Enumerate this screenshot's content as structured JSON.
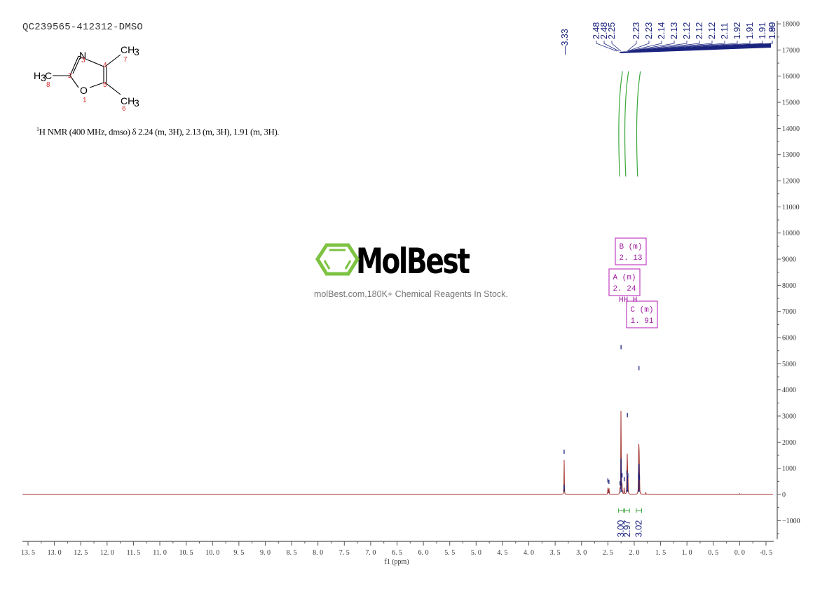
{
  "header": {
    "title": "QC239565-412312-DMSO",
    "nmr_description_sup": "1",
    "nmr_description": "H NMR (400 MHz, dmso) δ 2.24 (m, 3H), 2.13 (m, 3H), 1.91 (m, 3H)."
  },
  "structure": {
    "atoms": [
      {
        "label": "N",
        "num": "3"
      },
      {
        "label": "O",
        "num": "1"
      },
      {
        "label": "C",
        "num": "2"
      },
      {
        "label": "C",
        "num": "4"
      },
      {
        "label": "C",
        "num": "5"
      },
      {
        "label": "CH3",
        "num": "6"
      },
      {
        "label": "CH3",
        "num": "7"
      },
      {
        "label": "H3C",
        "num": "8"
      }
    ]
  },
  "watermark": {
    "brand": "MolBest",
    "tagline": "molBest.com,180K+ Chemical Reagents In Stock.",
    "logo_color": "#7dc242"
  },
  "colors": {
    "spectrum": "#a0302a",
    "peak_marker": "#1a237e",
    "integral": "#3aa63a",
    "multiplet_box": "#c040c0",
    "axis": "#555555"
  },
  "chart_data": {
    "type": "line",
    "title": "QC239565-412312-DMSO",
    "xlabel": "f1 (ppm)",
    "ylabel": "",
    "xlim": [
      13.5,
      -0.5
    ],
    "ylim": [
      -1800,
      18000
    ],
    "x_ticks": [
      "13.5",
      "13.0",
      "12.5",
      "12.0",
      "11.5",
      "11.0",
      "10.5",
      "10.0",
      "9.5",
      "9.0",
      "8.5",
      "8.0",
      "7.5",
      "7.0",
      "6.5",
      "6.0",
      "5.5",
      "5.0",
      "4.5",
      "4.0",
      "3.5",
      "3.0",
      "2.5",
      "2.0",
      "1.5",
      "1.0",
      "0.5",
      "0.0",
      "-0.5"
    ],
    "y_ticks": [
      "18000",
      "17000",
      "16000",
      "15000",
      "14000",
      "13000",
      "12000",
      "11000",
      "10000",
      "9000",
      "8000",
      "7000",
      "6000",
      "5000",
      "4000",
      "3000",
      "2000",
      "1000",
      "0",
      "-1000"
    ],
    "y_axis_position": "right",
    "grid": false,
    "peaks": [
      {
        "ppm": 3.33,
        "intensity": 1500
      },
      {
        "ppm": 2.5,
        "intensity": 400
      },
      {
        "ppm": 2.48,
        "intensity": 350
      },
      {
        "ppm": 2.27,
        "intensity": 300
      },
      {
        "ppm": 2.25,
        "intensity": 5500
      },
      {
        "ppm": 2.23,
        "intensity": 600
      },
      {
        "ppm": 2.19,
        "intensity": 450
      },
      {
        "ppm": 2.14,
        "intensity": 700
      },
      {
        "ppm": 2.13,
        "intensity": 2900
      },
      {
        "ppm": 2.12,
        "intensity": 600
      },
      {
        "ppm": 1.92,
        "intensity": 600
      },
      {
        "ppm": 1.91,
        "intensity": 4700
      },
      {
        "ppm": 1.9,
        "intensity": 500
      },
      {
        "ppm": 1.78,
        "intensity": 80
      },
      {
        "ppm": 0.0,
        "intensity": 40
      }
    ],
    "peak_labels": [
      "3.33",
      "2.48",
      "2.48",
      "2.25",
      "2.23",
      "2.23",
      "2.14",
      "2.13",
      "2.12",
      "2.12",
      "2.12",
      "2.11",
      "1.92",
      "1.91",
      "1.91",
      "1.90",
      "1.89"
    ],
    "multiplets": [
      {
        "label": "A (m)",
        "shift": "2.24"
      },
      {
        "label": "B (m)",
        "shift": "2.13"
      },
      {
        "label": "C (m)",
        "shift": "1.91"
      }
    ],
    "integrals": [
      {
        "from": 2.3,
        "to": 2.2,
        "value": "3.00"
      },
      {
        "from": 2.18,
        "to": 2.09,
        "value": "2.97"
      },
      {
        "from": 1.96,
        "to": 1.86,
        "value": "3.02"
      }
    ]
  }
}
